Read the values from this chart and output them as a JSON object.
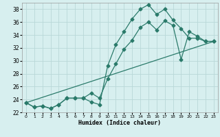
{
  "xlabel": "Humidex (Indice chaleur)",
  "bg_color": "#d7efef",
  "grid_color": "#b8d8d8",
  "line_color": "#2a7a6a",
  "xlim": [
    -0.5,
    23.5
  ],
  "ylim": [
    22,
    39
  ],
  "yticks": [
    22,
    24,
    26,
    28,
    30,
    32,
    34,
    36,
    38
  ],
  "xticks": [
    0,
    1,
    2,
    3,
    4,
    5,
    6,
    7,
    8,
    9,
    10,
    11,
    12,
    13,
    14,
    15,
    16,
    17,
    18,
    19,
    20,
    21,
    22,
    23
  ],
  "series1_x": [
    0,
    1,
    2,
    3,
    4,
    5,
    6,
    7,
    8,
    9,
    10,
    11,
    12,
    13,
    14,
    15,
    16,
    17,
    18,
    19,
    20,
    21,
    22,
    23
  ],
  "series1_y": [
    23.5,
    22.8,
    23.0,
    22.6,
    23.2,
    24.2,
    24.2,
    24.2,
    23.6,
    23.2,
    29.2,
    32.5,
    34.5,
    36.5,
    38.0,
    38.7,
    37.2,
    38.0,
    36.3,
    35.0,
    33.5,
    33.5,
    33.0,
    33.0
  ],
  "series2_x": [
    0,
    1,
    2,
    3,
    4,
    5,
    6,
    7,
    8,
    9,
    10,
    11,
    12,
    13,
    14,
    15,
    16,
    17,
    18,
    19,
    20,
    21,
    22,
    23
  ],
  "series2_y": [
    23.5,
    22.8,
    23.0,
    22.6,
    23.2,
    24.2,
    24.2,
    24.2,
    25.0,
    24.2,
    27.2,
    29.5,
    31.8,
    33.2,
    35.2,
    36.0,
    34.8,
    36.2,
    35.5,
    30.2,
    34.5,
    33.8,
    33.0,
    33.0
  ],
  "series3_x": [
    0,
    23
  ],
  "series3_y": [
    23.5,
    33.0
  ]
}
